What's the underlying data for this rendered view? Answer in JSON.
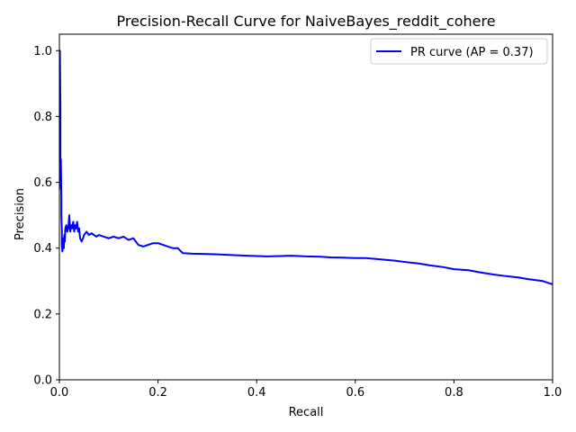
{
  "chart_data": {
    "type": "line",
    "title": "Precision-Recall Curve for NaiveBayes_reddit_cohere",
    "xlabel": "Recall",
    "ylabel": "Precision",
    "xlim": [
      0,
      1
    ],
    "ylim": [
      0,
      1.05
    ],
    "xticks": [
      0.0,
      0.2,
      0.4,
      0.6,
      0.8,
      1.0
    ],
    "xtick_labels": [
      "0.0",
      "0.2",
      "0.4",
      "0.6",
      "0.8",
      "1.0"
    ],
    "yticks": [
      0.0,
      0.2,
      0.4,
      0.6,
      0.8,
      1.0
    ],
    "ytick_labels": [
      "0.0",
      "0.2",
      "0.4",
      "0.6",
      "0.8",
      "1.0"
    ],
    "grid": false,
    "legend_position": "upper right",
    "series": [
      {
        "name": "PR curve (AP = 0.37)",
        "color": "#0000ff",
        "x": [
          0.0,
          0.001,
          0.002,
          0.002,
          0.003,
          0.003,
          0.004,
          0.004,
          0.005,
          0.005,
          0.006,
          0.007,
          0.008,
          0.009,
          0.01,
          0.011,
          0.012,
          0.014,
          0.016,
          0.018,
          0.02,
          0.022,
          0.024,
          0.026,
          0.028,
          0.03,
          0.032,
          0.034,
          0.036,
          0.038,
          0.04,
          0.042,
          0.045,
          0.048,
          0.05,
          0.055,
          0.06,
          0.065,
          0.07,
          0.075,
          0.08,
          0.09,
          0.1,
          0.11,
          0.12,
          0.13,
          0.14,
          0.15,
          0.16,
          0.17,
          0.18,
          0.19,
          0.2,
          0.21,
          0.22,
          0.23,
          0.24,
          0.25,
          0.27,
          0.3,
          0.32,
          0.35,
          0.38,
          0.4,
          0.42,
          0.45,
          0.47,
          0.5,
          0.53,
          0.55,
          0.58,
          0.6,
          0.62,
          0.65,
          0.68,
          0.7,
          0.73,
          0.75,
          0.78,
          0.8,
          0.83,
          0.85,
          0.88,
          0.9,
          0.93,
          0.95,
          0.98,
          1.0
        ],
        "y": [
          1.0,
          1.0,
          0.83,
          0.62,
          0.58,
          0.67,
          0.55,
          0.5,
          0.45,
          0.41,
          0.39,
          0.4,
          0.43,
          0.4,
          0.44,
          0.42,
          0.46,
          0.47,
          0.45,
          0.46,
          0.5,
          0.45,
          0.47,
          0.46,
          0.48,
          0.45,
          0.47,
          0.46,
          0.48,
          0.45,
          0.46,
          0.43,
          0.42,
          0.43,
          0.44,
          0.45,
          0.44,
          0.445,
          0.44,
          0.435,
          0.44,
          0.435,
          0.43,
          0.435,
          0.43,
          0.435,
          0.425,
          0.43,
          0.41,
          0.405,
          0.41,
          0.415,
          0.415,
          0.41,
          0.405,
          0.4,
          0.4,
          0.385,
          0.383,
          0.382,
          0.381,
          0.379,
          0.377,
          0.376,
          0.375,
          0.376,
          0.377,
          0.375,
          0.374,
          0.372,
          0.371,
          0.37,
          0.37,
          0.366,
          0.362,
          0.358,
          0.353,
          0.348,
          0.342,
          0.336,
          0.333,
          0.327,
          0.32,
          0.316,
          0.311,
          0.306,
          0.3,
          0.29
        ]
      }
    ]
  }
}
